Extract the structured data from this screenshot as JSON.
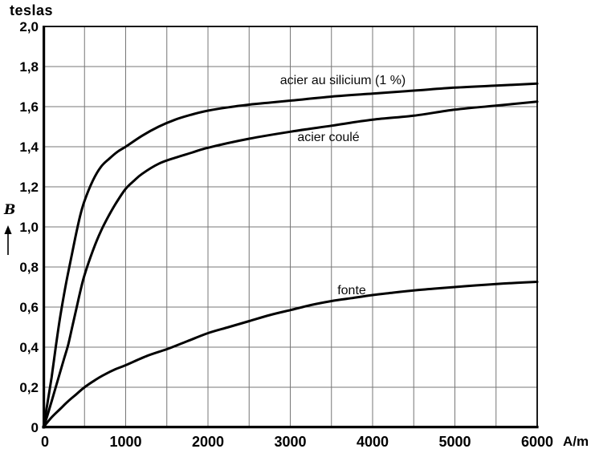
{
  "page": {
    "background": "#ffffff"
  },
  "chart_data": {
    "type": "line",
    "title": "",
    "y_unit_label": "teslas",
    "x_unit_label": "A/m",
    "y_axis_symbol": "B",
    "xlim": [
      0,
      6000
    ],
    "ylim": [
      0,
      2.0
    ],
    "x_grid_step": 500,
    "y_grid_step": 0.2,
    "grid": true,
    "legend_position": "inline-labels",
    "x_ticks": [
      0,
      1000,
      2000,
      3000,
      4000,
      5000,
      6000
    ],
    "x_tick_labels": [
      "0",
      "1000",
      "2000",
      "3000",
      "4000",
      "5000",
      "6000"
    ],
    "y_ticks": [
      2.0,
      1.8,
      1.6,
      1.4,
      1.2,
      1.0,
      0.8,
      0.6,
      0.4,
      0.2,
      0
    ],
    "y_tick_labels": [
      "2,0",
      "1,8",
      "1,6",
      "1,4",
      "1,2",
      "1,0",
      "0,8",
      "0,6",
      "0,4",
      "0,2",
      "0"
    ],
    "colors": {
      "curve": "#000000",
      "grid": "#777777",
      "axis": "#000000",
      "text": "#000000",
      "background": "#ffffff"
    },
    "series": [
      {
        "name": "acier au silicium (1 %)",
        "points": [
          [
            0,
            0
          ],
          [
            50,
            0.12
          ],
          [
            100,
            0.25
          ],
          [
            150,
            0.4
          ],
          [
            200,
            0.54
          ],
          [
            250,
            0.66
          ],
          [
            300,
            0.77
          ],
          [
            350,
            0.87
          ],
          [
            400,
            0.97
          ],
          [
            450,
            1.06
          ],
          [
            500,
            1.13
          ],
          [
            600,
            1.23
          ],
          [
            700,
            1.3
          ],
          [
            800,
            1.34
          ],
          [
            900,
            1.375
          ],
          [
            1000,
            1.4
          ],
          [
            1200,
            1.455
          ],
          [
            1400,
            1.5
          ],
          [
            1600,
            1.535
          ],
          [
            1800,
            1.56
          ],
          [
            2000,
            1.58
          ],
          [
            2250,
            1.597
          ],
          [
            2500,
            1.61
          ],
          [
            2750,
            1.62
          ],
          [
            3000,
            1.63
          ],
          [
            3500,
            1.65
          ],
          [
            4000,
            1.665
          ],
          [
            4500,
            1.68
          ],
          [
            5000,
            1.695
          ],
          [
            5500,
            1.705
          ],
          [
            6000,
            1.715
          ]
        ]
      },
      {
        "name": "acier coulé",
        "points": [
          [
            0,
            0
          ],
          [
            50,
            0.06
          ],
          [
            100,
            0.13
          ],
          [
            150,
            0.2
          ],
          [
            200,
            0.27
          ],
          [
            250,
            0.34
          ],
          [
            300,
            0.41
          ],
          [
            350,
            0.5
          ],
          [
            400,
            0.59
          ],
          [
            450,
            0.68
          ],
          [
            500,
            0.76
          ],
          [
            600,
            0.88
          ],
          [
            700,
            0.98
          ],
          [
            800,
            1.06
          ],
          [
            900,
            1.13
          ],
          [
            1000,
            1.19
          ],
          [
            1100,
            1.23
          ],
          [
            1200,
            1.265
          ],
          [
            1400,
            1.315
          ],
          [
            1600,
            1.345
          ],
          [
            1800,
            1.37
          ],
          [
            2000,
            1.395
          ],
          [
            2500,
            1.44
          ],
          [
            3000,
            1.475
          ],
          [
            3500,
            1.505
          ],
          [
            4000,
            1.535
          ],
          [
            4500,
            1.555
          ],
          [
            5000,
            1.585
          ],
          [
            5500,
            1.605
          ],
          [
            6000,
            1.625
          ]
        ]
      },
      {
        "name": "fonte",
        "points": [
          [
            0,
            0
          ],
          [
            100,
            0.05
          ],
          [
            200,
            0.09
          ],
          [
            300,
            0.13
          ],
          [
            400,
            0.165
          ],
          [
            500,
            0.2
          ],
          [
            625,
            0.235
          ],
          [
            750,
            0.265
          ],
          [
            875,
            0.29
          ],
          [
            1000,
            0.31
          ],
          [
            1250,
            0.355
          ],
          [
            1500,
            0.39
          ],
          [
            1750,
            0.43
          ],
          [
            2000,
            0.47
          ],
          [
            2250,
            0.5
          ],
          [
            2500,
            0.53
          ],
          [
            2750,
            0.56
          ],
          [
            3000,
            0.585
          ],
          [
            3250,
            0.61
          ],
          [
            3500,
            0.63
          ],
          [
            3750,
            0.645
          ],
          [
            4000,
            0.66
          ],
          [
            4250,
            0.672
          ],
          [
            4500,
            0.683
          ],
          [
            4750,
            0.692
          ],
          [
            5000,
            0.7
          ],
          [
            5250,
            0.708
          ],
          [
            5500,
            0.715
          ],
          [
            5750,
            0.721
          ],
          [
            6000,
            0.726
          ]
        ]
      }
    ]
  }
}
